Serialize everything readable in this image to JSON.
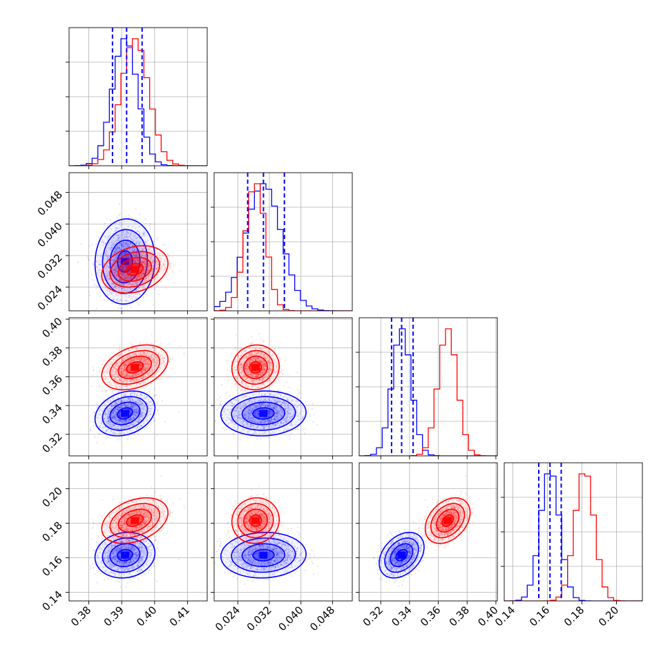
{
  "chart_data": {
    "type": "corner",
    "grid": true,
    "colors": {
      "blue": "#0000ff",
      "red": "#ff0000"
    },
    "series": [
      {
        "color": "#0000ff",
        "mean": [
          0.391,
          0.0305,
          0.3345,
          0.1615
        ],
        "sd": [
          0.0038,
          0.0045,
          0.0065,
          0.0055
        ],
        "corr": [
          [
            1,
            0.05,
            0.25,
            0.1
          ],
          [
            0.05,
            1,
            0.05,
            0.05
          ],
          [
            0.25,
            0.05,
            1,
            0.35
          ],
          [
            0.1,
            0.05,
            0.35,
            1
          ]
        ]
      },
      {
        "color": "#ff0000",
        "mean": [
          0.394,
          0.0285,
          0.3665,
          0.1815
        ],
        "sd": [
          0.0042,
          0.0025,
          0.0065,
          0.0055
        ],
        "corr": [
          [
            1,
            0.25,
            0.35,
            0.35
          ],
          [
            0.25,
            1,
            0.05,
            0.05
          ],
          [
            0.35,
            0.05,
            1,
            0.35
          ],
          [
            0.35,
            0.05,
            0.35,
            1
          ]
        ]
      }
    ],
    "quantile_lines": [
      [
        0.3872,
        0.3915,
        0.3962
      ],
      [
        0.0265,
        0.0305,
        0.0358
      ],
      [
        0.3275,
        0.3345,
        0.3425
      ],
      [
        0.155,
        0.1615,
        0.168
      ]
    ],
    "params": [
      {
        "range": [
          0.374,
          0.416
        ],
        "ticks": [
          0.38,
          0.39,
          0.4,
          0.41
        ],
        "tick_labels": [
          "0.38",
          "0.39",
          "0.40",
          "0.41"
        ]
      },
      {
        "range": [
          0.018,
          0.053
        ],
        "ticks": [
          0.024,
          0.032,
          0.04,
          0.048
        ],
        "tick_labels": [
          "0.024",
          "0.032",
          "0.040",
          "0.048"
        ]
      },
      {
        "range": [
          0.305,
          0.401
        ],
        "ticks": [
          0.32,
          0.34,
          0.36,
          0.38,
          0.4
        ],
        "tick_labels": [
          "0.32",
          "0.34",
          "0.36",
          "0.38",
          "0.40"
        ]
      },
      {
        "range": [
          0.135,
          0.215
        ],
        "ticks": [
          0.14,
          0.16,
          0.18,
          0.2
        ],
        "tick_labels": [
          "0.14",
          "0.16",
          "0.18",
          "0.20"
        ]
      }
    ]
  }
}
